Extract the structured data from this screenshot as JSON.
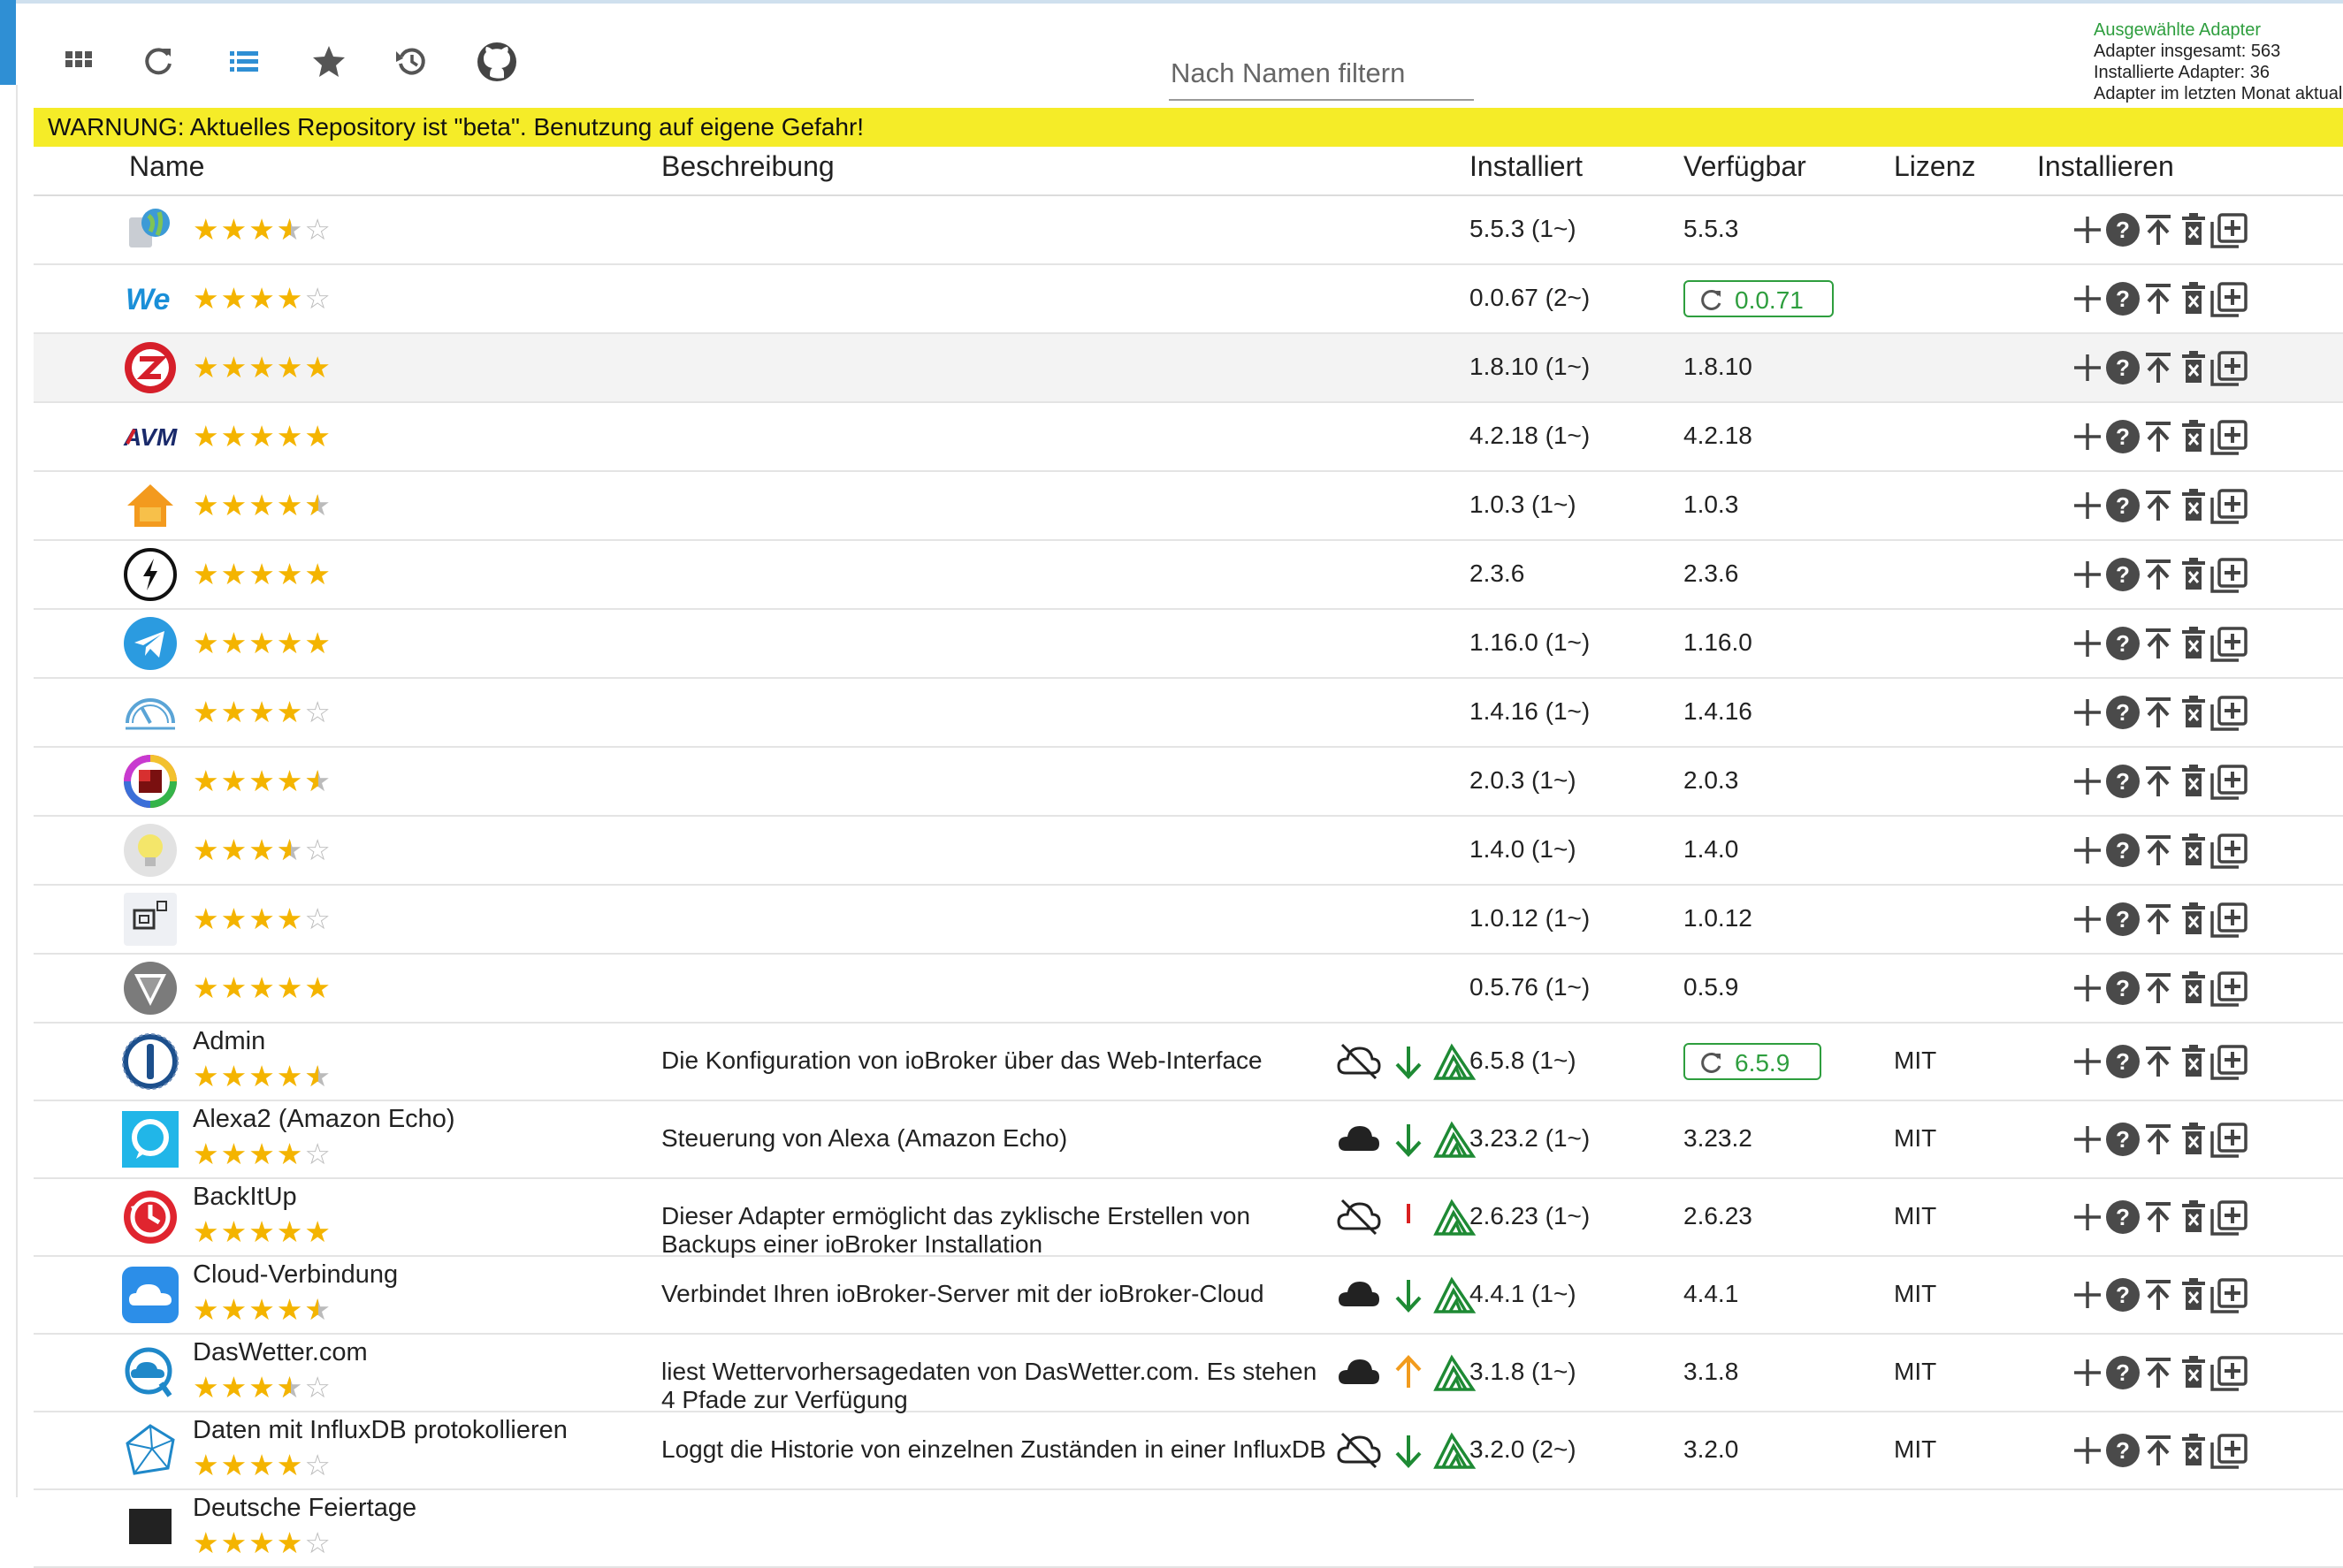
{
  "toolbar": {
    "buttons": [
      {
        "name": "tiles-view-button",
        "icon": "grid-icon"
      },
      {
        "name": "refresh-button",
        "icon": "refresh-icon"
      },
      {
        "name": "list-view-button",
        "icon": "list-icon",
        "active": true
      },
      {
        "name": "favorites-button",
        "icon": "star-icon"
      },
      {
        "name": "update-check-button",
        "icon": "history-icon"
      },
      {
        "name": "github-button",
        "icon": "github-icon"
      }
    ],
    "filter_placeholder": "Nach Namen filtern"
  },
  "stats": {
    "selected": "Ausgewählte Adapter",
    "total": "Adapter insgesamt: 563",
    "installed": "Installierte Adapter: 36",
    "last_month": "Adapter im letzten Monat aktualisiert"
  },
  "warning": "WARNUNG: Aktuelles Repository ist \"beta\". Benutzung auf eigene Gefahr!",
  "headers": {
    "name": "Name",
    "description": "Beschreibung",
    "installed": "Installiert",
    "available": "Verfügbar",
    "license": "Lizenz",
    "install": "Installieren"
  },
  "colors": {
    "star": "#f4b400",
    "warning_bg": "#f5ec28",
    "update_green": "#2e9e3e",
    "accent_blue": "#2f8fd4"
  },
  "rows": [
    {
      "logo": "globe-server",
      "rating": 3.5,
      "installed": "5.5.3 (1~)",
      "available": "5.5.3"
    },
    {
      "logo": "we-text",
      "rating": 4,
      "installed": "0.0.67 (2~)",
      "available": "0.0.71",
      "update": true
    },
    {
      "logo": "zwave",
      "rating": 5,
      "installed": "1.8.10 (1~)",
      "available": "1.8.10",
      "shaded": true
    },
    {
      "logo": "avm",
      "rating": 5,
      "installed": "4.2.18 (1~)",
      "available": "4.2.18"
    },
    {
      "logo": "home",
      "rating": 4.5,
      "installed": "1.0.3 (1~)",
      "available": "1.0.3"
    },
    {
      "logo": "lightning-circle",
      "rating": 5,
      "installed": "2.3.6",
      "available": "2.3.6"
    },
    {
      "logo": "telegram",
      "rating": 5,
      "installed": "1.16.0 (1~)",
      "available": "1.16.0"
    },
    {
      "logo": "speedometer",
      "rating": 4,
      "installed": "1.4.16 (1~)",
      "available": "1.4.16"
    },
    {
      "logo": "color-wheel",
      "rating": 4.5,
      "installed": "2.0.3 (1~)",
      "available": "2.0.3"
    },
    {
      "logo": "bulb",
      "rating": 3.5,
      "installed": "1.4.0 (1~)",
      "available": "1.4.0"
    },
    {
      "logo": "device-box",
      "rating": 4,
      "installed": "1.0.12 (1~)",
      "available": "1.0.12"
    },
    {
      "logo": "grey-triangle",
      "rating": 5,
      "installed": "0.5.76 (1~)",
      "available": "0.5.9"
    },
    {
      "logo": "iobroker",
      "name": "Admin",
      "rating": 4.5,
      "desc": "Die Konfiguration von ioBroker über das Web-Interface",
      "cloud": "off",
      "arrow": "down",
      "installed": "6.5.8 (1~)",
      "available": "6.5.9",
      "update": true,
      "license": "MIT"
    },
    {
      "logo": "alexa",
      "name": "Alexa2 (Amazon Echo)",
      "rating": 4,
      "desc": "Steuerung von Alexa (Amazon Echo)",
      "cloud": "on",
      "arrow": "down",
      "installed": "3.23.2 (1~)",
      "available": "3.23.2",
      "license": "MIT"
    },
    {
      "logo": "backitup",
      "name": "BackItUp",
      "rating": 5,
      "desc": "Dieser Adapter ermöglicht das zyklische Erstellen von Backups einer ioBroker Installation",
      "cloud": "off",
      "arrow": "bar",
      "installed": "2.6.23 (1~)",
      "available": "2.6.23",
      "license": "MIT"
    },
    {
      "logo": "cloud-app",
      "name": "Cloud-Verbindung",
      "rating": 4.5,
      "desc": "Verbindet Ihren ioBroker-Server mit der ioBroker-Cloud",
      "cloud": "on",
      "arrow": "down",
      "installed": "4.4.1 (1~)",
      "available": "4.4.1",
      "license": "MIT"
    },
    {
      "logo": "daswetter",
      "name": "DasWetter.com",
      "rating": 3.5,
      "desc": "liest Wettervorhersagedaten von DasWetter.com. Es stehen 4 Pfade zur Verfügung",
      "cloud": "on",
      "arrow": "up",
      "installed": "3.1.8 (1~)",
      "available": "3.1.8",
      "license": "MIT"
    },
    {
      "logo": "influxdb",
      "name": "Daten mit InfluxDB protokollieren",
      "rating": 4,
      "desc": "Loggt die Historie von einzelnen Zuständen in einer InfluxDB",
      "cloud": "off",
      "arrow": "down",
      "installed": "3.2.0 (2~)",
      "available": "3.2.0",
      "license": "MIT"
    },
    {
      "logo": "feiertage",
      "name": "Deutsche Feiertage",
      "rating": 4,
      "desc": "",
      "cloud": "",
      "arrow": "",
      "installed": "",
      "available": "",
      "license": ""
    }
  ]
}
